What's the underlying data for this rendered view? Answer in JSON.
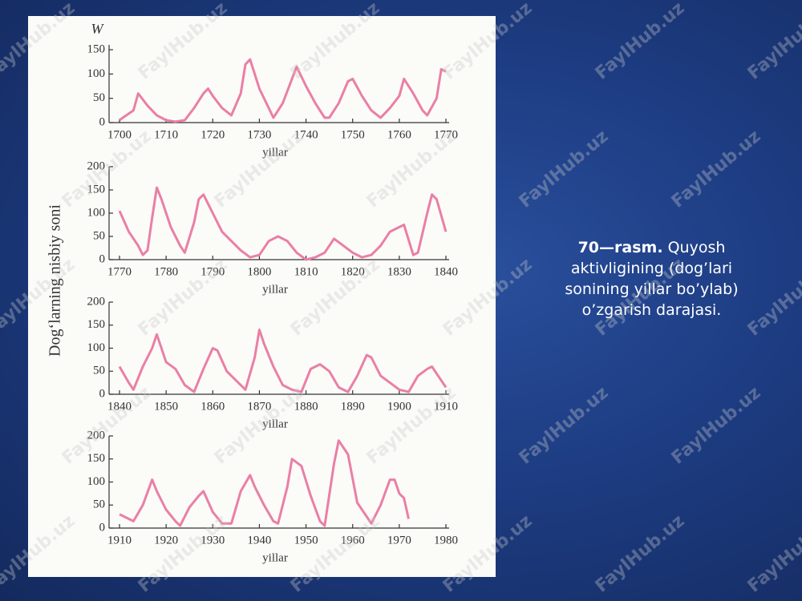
{
  "figure_ylabel": "Dog‘larning nisbiy soni",
  "caption": {
    "label": "70—rasm.",
    "text": "Quyosh aktivligining (dog’lari sonining yillar bo’ylab) o’zgarish darajasi."
  },
  "watermark": "FaylHub.uz",
  "chart_data": [
    {
      "type": "line",
      "ylabel": "W",
      "xlabel": "yillar",
      "color": "#ea7fa6",
      "x": [
        1700,
        1701,
        1703,
        1704,
        1706,
        1708,
        1710,
        1712,
        1714,
        1716,
        1718,
        1719,
        1720,
        1722,
        1724,
        1726,
        1727,
        1728,
        1730,
        1732,
        1733,
        1735,
        1737,
        1738,
        1740,
        1742,
        1744,
        1745,
        1747,
        1749,
        1750,
        1752,
        1754,
        1756,
        1758,
        1760,
        1761,
        1763,
        1765,
        1766,
        1768,
        1769,
        1770
      ],
      "values": [
        5,
        12,
        25,
        60,
        35,
        15,
        5,
        2,
        5,
        30,
        60,
        70,
        55,
        30,
        15,
        60,
        120,
        130,
        70,
        30,
        10,
        40,
        90,
        115,
        75,
        40,
        10,
        10,
        40,
        85,
        90,
        55,
        25,
        10,
        30,
        55,
        90,
        60,
        25,
        15,
        50,
        110,
        105
      ],
      "xlim": [
        1700,
        1770
      ],
      "xticks": [
        1700,
        1710,
        1720,
        1730,
        1740,
        1750,
        1760,
        1770
      ],
      "ylim": [
        0,
        160
      ],
      "yticks": [
        0,
        50,
        100,
        150
      ]
    },
    {
      "type": "line",
      "xlabel": "yillar",
      "color": "#ea7fa6",
      "x": [
        1770,
        1772,
        1774,
        1775,
        1776,
        1777,
        1778,
        1779,
        1781,
        1783,
        1784,
        1786,
        1787,
        1788,
        1790,
        1792,
        1794,
        1796,
        1798,
        1800,
        1802,
        1804,
        1806,
        1808,
        1810,
        1812,
        1814,
        1816,
        1818,
        1820,
        1822,
        1824,
        1826,
        1828,
        1830,
        1831,
        1833,
        1834,
        1836,
        1837,
        1838,
        1840
      ],
      "values": [
        105,
        60,
        30,
        10,
        20,
        90,
        155,
        130,
        70,
        30,
        15,
        80,
        130,
        140,
        100,
        60,
        40,
        20,
        5,
        10,
        40,
        50,
        40,
        15,
        0,
        5,
        15,
        45,
        30,
        15,
        5,
        10,
        30,
        60,
        70,
        75,
        10,
        15,
        100,
        140,
        130,
        60
      ],
      "xlim": [
        1770,
        1840
      ],
      "xticks": [
        1770,
        1780,
        1790,
        1800,
        1810,
        1820,
        1830,
        1840
      ],
      "ylim": [
        0,
        200
      ],
      "yticks": [
        0,
        50,
        100,
        150,
        200
      ]
    },
    {
      "type": "line",
      "xlabel": "yillar",
      "color": "#ea7fa6",
      "x": [
        1840,
        1842,
        1843,
        1845,
        1847,
        1848,
        1850,
        1852,
        1854,
        1856,
        1858,
        1860,
        1861,
        1863,
        1865,
        1867,
        1869,
        1870,
        1871,
        1873,
        1875,
        1877,
        1879,
        1881,
        1883,
        1885,
        1887,
        1889,
        1891,
        1893,
        1894,
        1896,
        1898,
        1900,
        1902,
        1904,
        1906,
        1907,
        1909,
        1910
      ],
      "values": [
        60,
        25,
        10,
        60,
        100,
        130,
        70,
        55,
        20,
        5,
        55,
        100,
        95,
        50,
        30,
        10,
        80,
        140,
        110,
        60,
        20,
        10,
        5,
        55,
        65,
        50,
        15,
        5,
        40,
        85,
        80,
        40,
        25,
        10,
        5,
        40,
        55,
        60,
        30,
        15
      ],
      "xlim": [
        1840,
        1910
      ],
      "xticks": [
        1840,
        1850,
        1860,
        1870,
        1880,
        1890,
        1900,
        1910
      ],
      "ylim": [
        0,
        200
      ],
      "yticks": [
        0,
        50,
        100,
        150,
        200
      ]
    },
    {
      "type": "line",
      "xlabel": "yillar",
      "color": "#ea7fa6",
      "x": [
        1910,
        1912,
        1913,
        1915,
        1917,
        1918,
        1920,
        1922,
        1923,
        1925,
        1927,
        1928,
        1930,
        1932,
        1934,
        1936,
        1938,
        1939,
        1941,
        1943,
        1944,
        1946,
        1947,
        1949,
        1951,
        1953,
        1954,
        1956,
        1957,
        1959,
        1961,
        1963,
        1964,
        1966,
        1968,
        1969,
        1970,
        1971,
        1972
      ],
      "values": [
        30,
        20,
        15,
        50,
        105,
        80,
        40,
        15,
        5,
        45,
        70,
        80,
        35,
        10,
        10,
        80,
        115,
        90,
        50,
        15,
        10,
        90,
        150,
        135,
        70,
        15,
        5,
        140,
        190,
        160,
        55,
        25,
        10,
        50,
        105,
        105,
        75,
        65,
        20
      ],
      "xlim": [
        1910,
        1980
      ],
      "xticks": [
        1910,
        1920,
        1930,
        1940,
        1950,
        1960,
        1970,
        1980
      ],
      "ylim": [
        0,
        200
      ],
      "yticks": [
        0,
        50,
        100,
        150,
        200
      ]
    }
  ]
}
